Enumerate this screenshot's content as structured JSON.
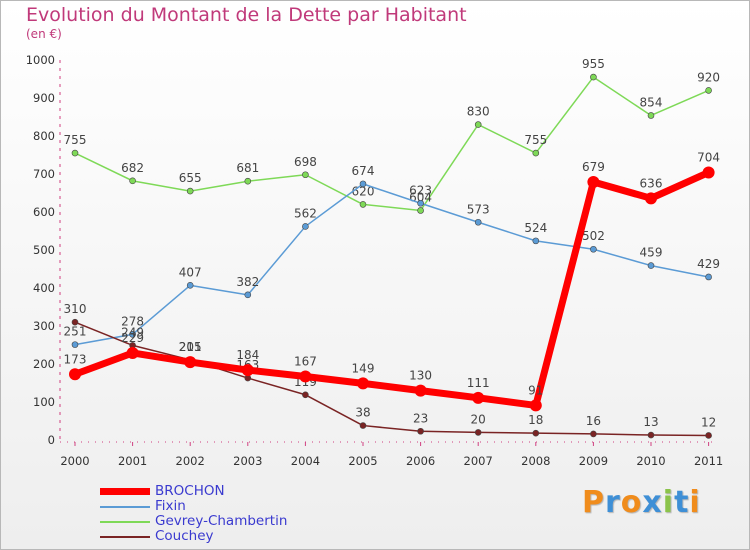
{
  "title": "Evolution du Montant de la Dette par Habitant",
  "subtitle": "(en €)",
  "brand": {
    "letters": [
      "P",
      "r",
      "o",
      "x",
      "i",
      "t",
      "i"
    ],
    "colors": [
      "#f08c1c",
      "#3e8fd6",
      "#f08c1c",
      "#3e8fd6",
      "#8bc34a",
      "#3e8fd6",
      "#f08c1c"
    ]
  },
  "chart_data": {
    "type": "line",
    "x": [
      "2000",
      "2001",
      "2002",
      "2003",
      "2004",
      "2005",
      "2006",
      "2007",
      "2008",
      "2009",
      "2010",
      "2011"
    ],
    "ylim": [
      0,
      1000
    ],
    "yticks": [
      0,
      100,
      200,
      300,
      400,
      500,
      600,
      700,
      800,
      900,
      1000
    ],
    "grid": false,
    "legend_position": "bottom-left",
    "series": [
      {
        "name": "Gevrey-Chambertin",
        "color": "#7ed957",
        "values": [
          755,
          682,
          655,
          681,
          698,
          620,
          604,
          830,
          755,
          955,
          854,
          920
        ]
      },
      {
        "name": "Fixin",
        "color": "#5b9bd5",
        "values": [
          251,
          278,
          407,
          382,
          562,
          674,
          623,
          573,
          524,
          502,
          459,
          429
        ]
      },
      {
        "name": "Couchey",
        "color": "#7a2424",
        "values": [
          310,
          249,
          211,
          163,
          119,
          38,
          23,
          20,
          18,
          16,
          13,
          12
        ]
      },
      {
        "name": "BROCHON",
        "color": "#ff0000",
        "values": [
          173,
          229,
          205,
          184,
          167,
          149,
          130,
          111,
          91,
          679,
          636,
          704
        ]
      }
    ],
    "legend_order": [
      "BROCHON",
      "Fixin",
      "Gevrey-Chambertin",
      "Couchey"
    ]
  }
}
